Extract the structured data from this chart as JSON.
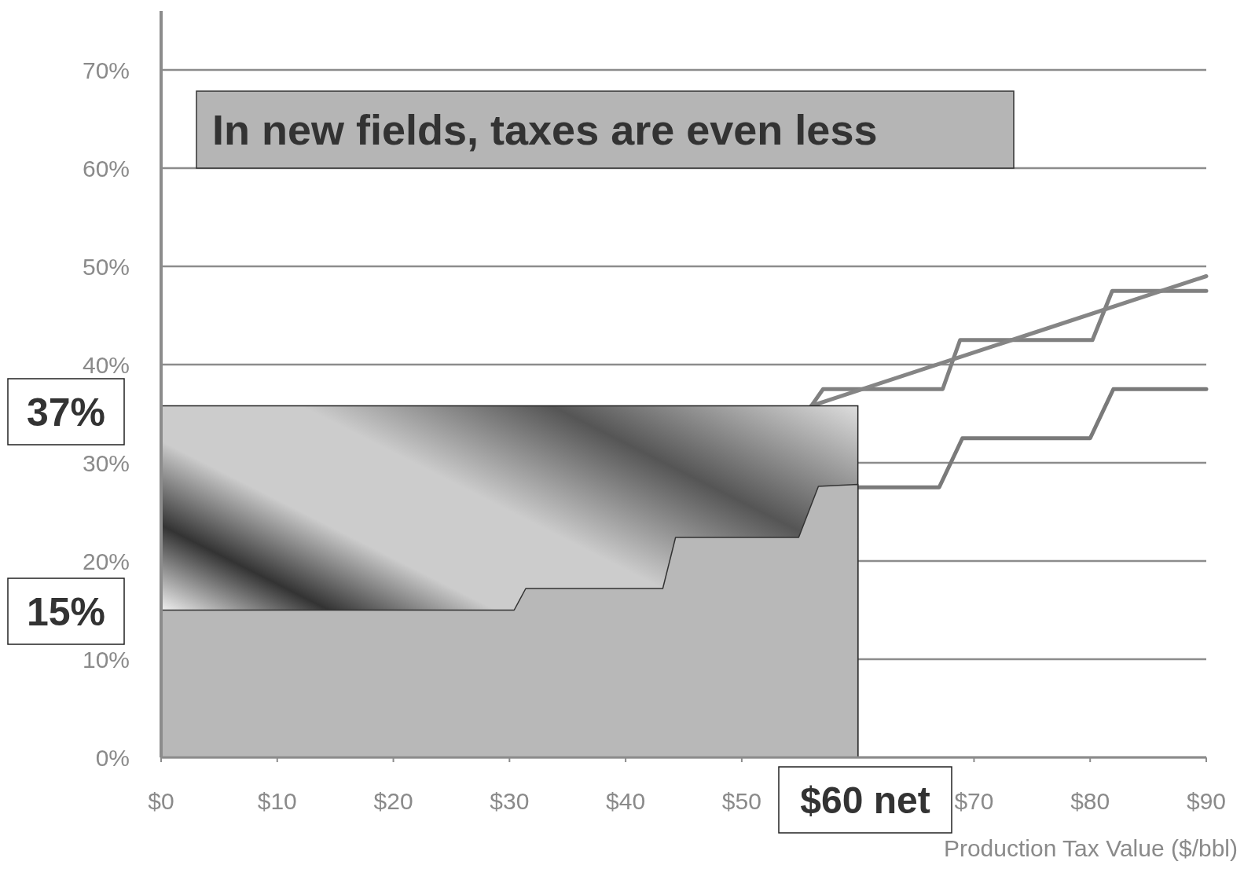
{
  "chart_data": {
    "type": "line",
    "title": "In new fields, taxes are even less",
    "xlabel": "Production Tax Value ($/bbl)",
    "xlim": [
      0,
      90
    ],
    "ylim": [
      0,
      76
    ],
    "xticks": [
      {
        "value": 0,
        "label": "$0"
      },
      {
        "value": 10,
        "label": "$10"
      },
      {
        "value": 20,
        "label": "$20"
      },
      {
        "value": 30,
        "label": "$30"
      },
      {
        "value": 40,
        "label": "$40"
      },
      {
        "value": 50,
        "label": "$50"
      },
      {
        "value": 70,
        "label": "$70"
      },
      {
        "value": 80,
        "label": "$80"
      },
      {
        "value": 90,
        "label": "$90"
      }
    ],
    "yticks": [
      {
        "value": 0,
        "label": "0%"
      },
      {
        "value": 10,
        "label": "10%"
      },
      {
        "value": 20,
        "label": "20%"
      },
      {
        "value": 30,
        "label": "30%"
      },
      {
        "value": 40,
        "label": "40%"
      },
      {
        "value": 50,
        "label": "50%"
      },
      {
        "value": 60,
        "label": "60%"
      },
      {
        "value": 70,
        "label": "70%"
      }
    ],
    "grid": "y",
    "series": [
      {
        "color": "#808080",
        "x": [
          56,
          57,
          67.3,
          68.8,
          80.2,
          81.9,
          90
        ],
        "values": [
          35.8,
          37.5,
          37.5,
          42.5,
          42.5,
          47.5,
          47.5
        ]
      },
      {
        "color": "#858585",
        "x": [
          56,
          73,
          90
        ],
        "values": [
          35.8,
          42.4,
          49
        ]
      },
      {
        "color": "#7a7a7a",
        "x": [
          60,
          67,
          69,
          80,
          82,
          90
        ],
        "values": [
          27.5,
          27.5,
          32.5,
          32.5,
          37.5,
          37.5
        ]
      },
      {
        "type": "area",
        "color": "#b8b8b8",
        "x": [
          0,
          30.4,
          31.4,
          43.2,
          44.3,
          54.9,
          56.6,
          60
        ],
        "values": [
          15,
          15,
          17.2,
          17.2,
          22.4,
          22.4,
          27.6,
          27.8
        ]
      }
    ],
    "annotations": [
      "37%",
      "15%",
      "$60 net"
    ]
  }
}
